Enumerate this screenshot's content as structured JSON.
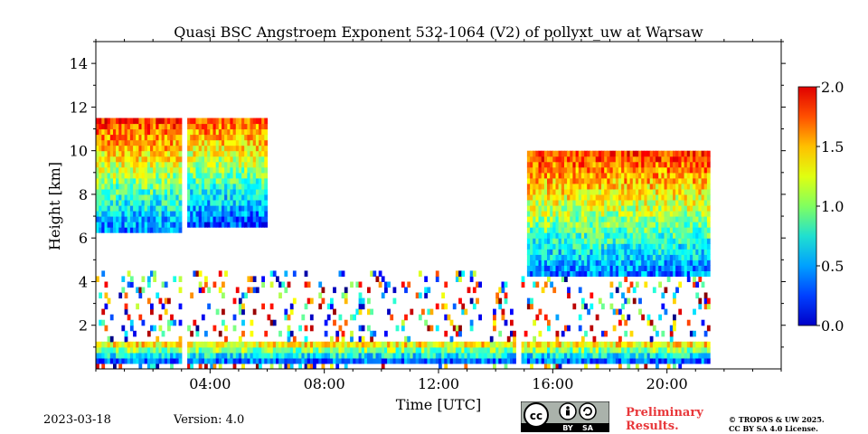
{
  "chart_data": {
    "type": "heatmap",
    "title": "Quasi BSC Angstroem Exponent 532-1064 (V2) of pollyxt_uw at Warsaw",
    "xlabel": "Time [UTC]",
    "ylabel": "Height [km]",
    "xlim_hours": [
      0,
      24
    ],
    "ylim": [
      0,
      15
    ],
    "x_ticks": [
      "04:00",
      "08:00",
      "12:00",
      "16:00",
      "20:00"
    ],
    "x_tick_hours": [
      4,
      8,
      12,
      16,
      20
    ],
    "y_ticks": [
      2,
      4,
      6,
      8,
      10,
      12,
      14
    ],
    "colorbar": {
      "range": [
        0.0,
        2.0
      ],
      "ticks": [
        "0.0",
        "0.5",
        "1.0",
        "1.5",
        "2.0"
      ],
      "tick_values": [
        0.0,
        0.5,
        1.0,
        1.5,
        2.0
      ],
      "colormap": "jet"
    },
    "data_gaps_hours": [
      [
        3.0,
        3.2
      ],
      [
        14.6,
        14.8
      ]
    ],
    "data_end_hour": 21.5,
    "regions": [
      {
        "x": [
          0,
          3.0
        ],
        "y": [
          6.2,
          11.5
        ],
        "value": 1.1
      },
      {
        "x": [
          3.2,
          5.9
        ],
        "y": [
          6.5,
          11.3
        ],
        "value": 1.0
      },
      {
        "x": [
          15.0,
          21.5
        ],
        "y": [
          4.2,
          10.0
        ],
        "value": 1.1
      },
      {
        "x": [
          0,
          21.5
        ],
        "y": [
          0.1,
          1.2
        ],
        "value": 0.9
      }
    ]
  },
  "footer": {
    "date": "2023-03-18",
    "version": "Version: 4.0",
    "preliminary_line1": "Preliminary",
    "preliminary_line2": "Results.",
    "copyright_line1": "© TROPOS & UW 2025.",
    "copyright_line2": "CC BY SA 4.0 License.",
    "license_by": "BY",
    "license_sa": "SA"
  }
}
